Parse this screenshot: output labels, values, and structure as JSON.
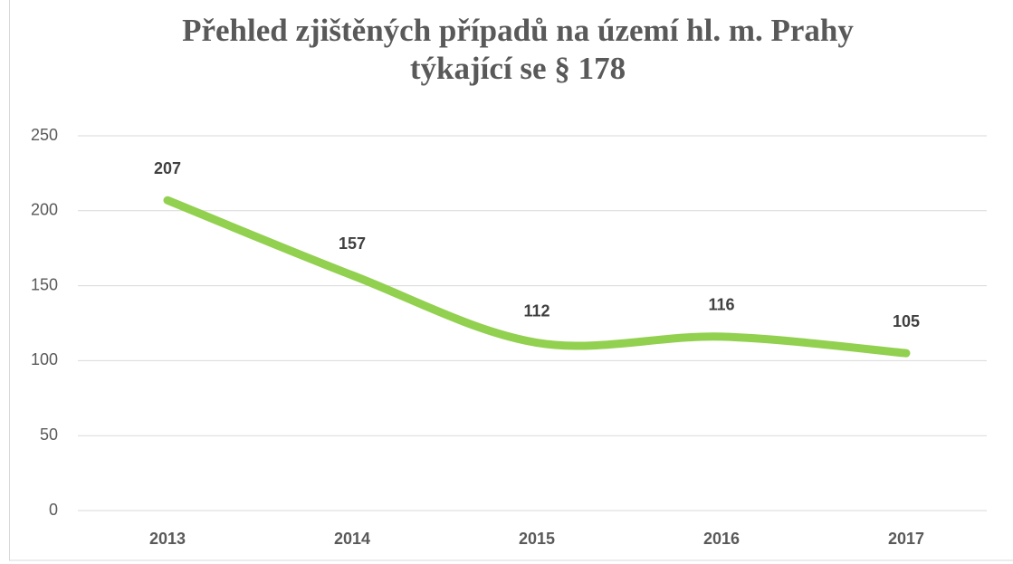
{
  "chart_data": {
    "type": "line",
    "title": [
      "Přehled zjištěných případů na území hl. m. Prahy",
      "týkající se § 178"
    ],
    "categories": [
      "2013",
      "2014",
      "2015",
      "2016",
      "2017"
    ],
    "values": [
      207,
      157,
      112,
      116,
      105
    ],
    "color": "#92d050",
    "smooth": true,
    "ylim": [
      0,
      250
    ],
    "yticks": [
      0,
      50,
      100,
      150,
      200,
      250
    ],
    "grid": true
  }
}
